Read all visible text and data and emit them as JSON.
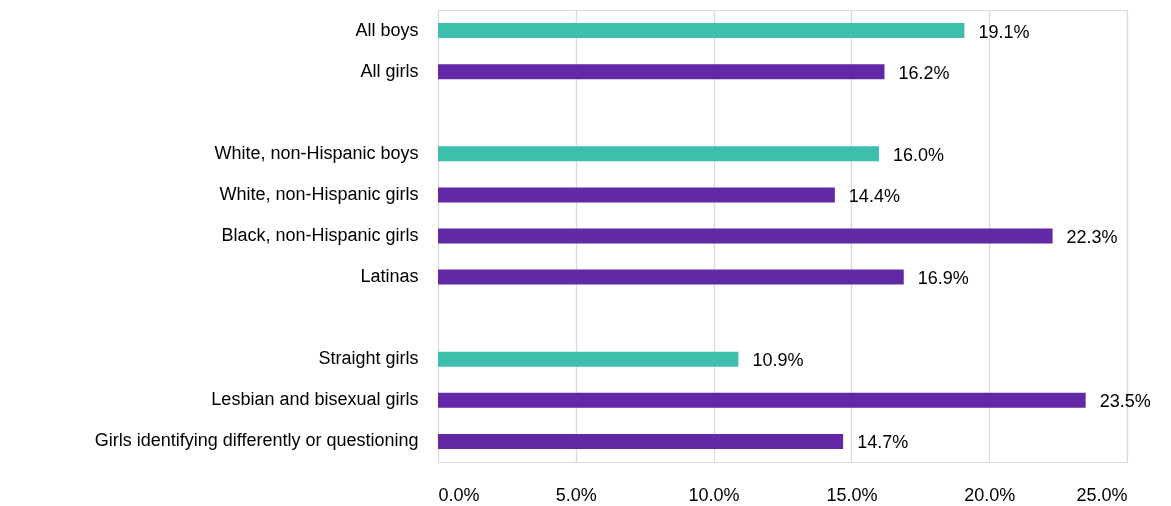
{
  "chart_data": {
    "type": "bar",
    "orientation": "horizontal",
    "categories": [
      "All boys",
      "All girls",
      null,
      "White, non-Hispanic boys",
      "White, non-Hispanic girls",
      "Black, non-Hispanic girls",
      "Latinas",
      null,
      "Straight girls",
      "Lesbian and bisexual girls",
      "Girls identifying differently or questioning"
    ],
    "values": [
      19.1,
      16.2,
      null,
      16.0,
      14.4,
      22.3,
      16.9,
      null,
      10.9,
      23.5,
      14.7
    ],
    "colors": [
      "#3ebfae",
      "#6228a5",
      null,
      "#3ebfae",
      "#6228a5",
      "#6228a5",
      "#6228a5",
      null,
      "#3ebfae",
      "#6228a5",
      "#6228a5"
    ],
    "value_labels": [
      "19.1%",
      "16.2%",
      null,
      "16.0%",
      "14.4%",
      "22.3%",
      "16.9%",
      null,
      "10.9%",
      "23.5%",
      "14.7%"
    ],
    "xlim": [
      0,
      25
    ],
    "xticks": [
      {
        "value": 0,
        "label": "0.0%"
      },
      {
        "value": 5,
        "label": "5.0%"
      },
      {
        "value": 10,
        "label": "10.0%"
      },
      {
        "value": 15,
        "label": "15.0%"
      },
      {
        "value": 20,
        "label": "20.0%"
      },
      {
        "value": 25,
        "label": "25.0%"
      }
    ],
    "grid": "x"
  }
}
